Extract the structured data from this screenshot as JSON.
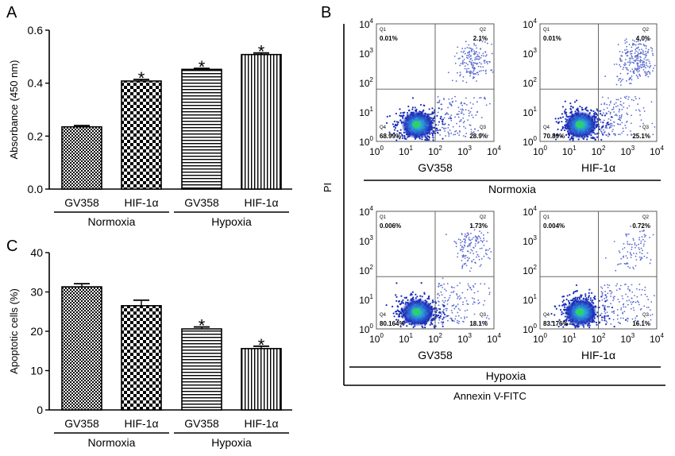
{
  "panels": {
    "a": "A",
    "b": "B",
    "c": "C"
  },
  "colors": {
    "axis": "#000000",
    "quadrant_line": "#555555",
    "dense_core": "#1a2fb8",
    "mid_density": "#2a8fd8",
    "hot_spot": "#2fd06a",
    "sparse": "#5a6ad0"
  },
  "chart_data": [
    {
      "id": "A",
      "type": "bar",
      "categories": [
        "GV358",
        "HIF-1α",
        "GV358",
        "HIF-1α"
      ],
      "values": [
        0.235,
        0.408,
        0.452,
        0.508
      ],
      "errors": [
        0.005,
        0.006,
        0.004,
        0.006
      ],
      "patterns": [
        "checker-fine",
        "checker-large",
        "horizontal-lines",
        "vertical-lines"
      ],
      "significant": [
        false,
        true,
        true,
        true
      ],
      "sig_mark": "*",
      "groups": [
        {
          "label": "Normoxia",
          "span": [
            0,
            1
          ]
        },
        {
          "label": "Hypoxia",
          "span": [
            2,
            3
          ]
        }
      ],
      "ylabel": "Absorbance (450 nm)",
      "ylim": [
        0,
        0.6
      ],
      "yticks": [
        0.0,
        0.2,
        0.4,
        0.6
      ],
      "ytick_labels": [
        "0.0",
        "0.2",
        "0.4",
        "0.6"
      ]
    },
    {
      "id": "C",
      "type": "bar",
      "categories": [
        "GV358",
        "HIF-1α",
        "GV358",
        "HIF-1α"
      ],
      "values": [
        31.3,
        26.5,
        20.6,
        15.6
      ],
      "errors": [
        0.8,
        1.4,
        0.5,
        0.6
      ],
      "patterns": [
        "checker-fine",
        "checker-large",
        "horizontal-lines",
        "vertical-lines"
      ],
      "significant": [
        false,
        false,
        true,
        true
      ],
      "sig_mark": "*",
      "groups": [
        {
          "label": "Normoxia",
          "span": [
            0,
            1
          ]
        },
        {
          "label": "Hypoxia",
          "span": [
            2,
            3
          ]
        }
      ],
      "ylabel": "Apoptotic cells (%)",
      "ylim": [
        0,
        40
      ],
      "yticks": [
        0,
        10,
        20,
        30,
        40
      ],
      "ytick_labels": [
        "0",
        "10",
        "20",
        "30",
        "40"
      ]
    },
    {
      "id": "B",
      "type": "scatter",
      "xlabel": "Annexin V-FITC",
      "ylabel": "PI",
      "axis_scale": "log",
      "xlim": [
        1,
        10000
      ],
      "ylim": [
        1,
        10000
      ],
      "tick_exponents": [
        "0",
        "1",
        "2",
        "3",
        "4"
      ],
      "tick_base": "10",
      "quadrant_gate": {
        "x": 100,
        "y": 60
      },
      "group_labels": {
        "top": "Normoxia",
        "bottom": "Hypoxia"
      },
      "plots": [
        {
          "name": "GV358",
          "group": "Normoxia",
          "q1": {
            "label": "Q1",
            "value": "0.01%"
          },
          "q2": {
            "label": "Q2",
            "value": "2.1%"
          },
          "q3": {
            "label": "Q3",
            "value": "28.9%"
          },
          "q4": {
            "label": "Q4",
            "value": "68.99%"
          }
        },
        {
          "name": "HIF-1α",
          "group": "Normoxia",
          "q1": {
            "label": "Q1",
            "value": "0.01%"
          },
          "q2": {
            "label": "Q2",
            "value": "4.0%"
          },
          "q3": {
            "label": "Q3",
            "value": "25.1%"
          },
          "q4": {
            "label": "Q4",
            "value": "70.89%"
          }
        },
        {
          "name": "GV358",
          "group": "Hypoxia",
          "q1": {
            "label": "Q1",
            "value": "0.006%"
          },
          "q2": {
            "label": "Q2",
            "value": "1.73%"
          },
          "q3": {
            "label": "Q3",
            "value": "18.1%"
          },
          "q4": {
            "label": "Q4",
            "value": "80.164%"
          }
        },
        {
          "name": "HIF-1α",
          "group": "Hypoxia",
          "q1": {
            "label": "Q1",
            "value": "0.004%"
          },
          "q2": {
            "label": "Q2",
            "value": "0.72%"
          },
          "q3": {
            "label": "Q3",
            "value": "16.1%"
          },
          "q4": {
            "label": "Q4",
            "value": "83.176%"
          }
        }
      ]
    }
  ]
}
